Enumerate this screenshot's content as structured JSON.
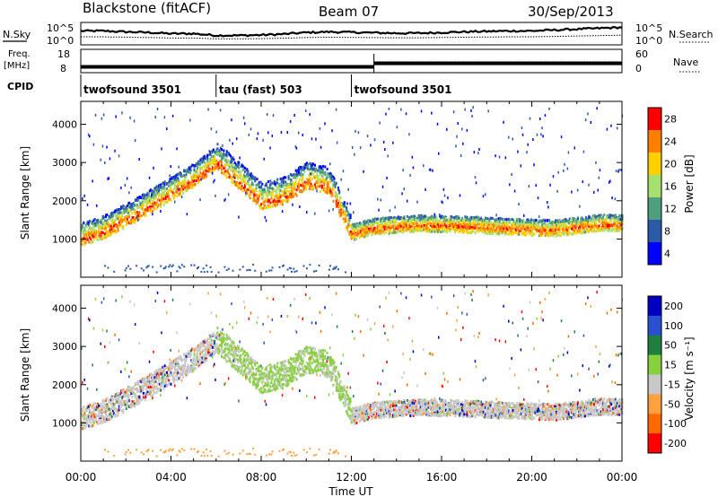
{
  "header": {
    "radar": "Blackstone (fitACF)",
    "beam": "Beam 07",
    "date": "30/Sep/2013"
  },
  "labels": {
    "nsky": "N.Sky",
    "nsearch": "N.Search",
    "freq_l1": "Freq.",
    "freq_l2": "[MHz]",
    "nave": "Nave",
    "cpid": "CPID",
    "ylabel": "Slant Range [km]",
    "xlabel": "Time UT"
  },
  "cpid_segments": [
    {
      "label": "twofsound 3501",
      "start_h": 0,
      "end_h": 6
    },
    {
      "label": "tau (fast) 503",
      "start_h": 6,
      "end_h": 12
    },
    {
      "label": "twofsound 3501",
      "start_h": 12,
      "end_h": 24
    }
  ],
  "noise_panel": {
    "left_ticks": [
      "10^5",
      "10^0"
    ],
    "right_ticks": [
      "10^5",
      "10^0"
    ],
    "nsky_level": [
      0.62,
      0.62,
      0.58,
      0.55,
      0.5,
      0.5,
      0.42,
      0.42,
      0.44,
      0.48,
      0.55,
      0.58,
      0.56,
      0.54,
      0.52,
      0.52,
      0.55,
      0.58,
      0.6,
      0.62,
      0.62,
      0.66,
      0.7,
      0.74,
      0.78
    ]
  },
  "freq_panel": {
    "left_ticks": [
      "18",
      "8"
    ],
    "right_ticks": [
      "60",
      "0"
    ],
    "freq_mhz": [
      {
        "start_h": 0,
        "end_h": 13,
        "value": 10.5
      },
      {
        "start_h": 13,
        "end_h": 24,
        "value": 12.0
      }
    ],
    "nave": [
      {
        "start_h": 0,
        "end_h": 13,
        "value": 14
      },
      {
        "start_h": 13,
        "end_h": 24,
        "value": 28
      }
    ]
  },
  "chart_data": [
    {
      "type": "heatmap",
      "name": "Power",
      "x_range_h": [
        0,
        24
      ],
      "ylim": [
        0,
        4600
      ],
      "yticks": [
        1000,
        2000,
        3000,
        4000
      ],
      "xticks": [
        "00:00",
        "04:00",
        "08:00",
        "12:00",
        "16:00",
        "20:00",
        "00:00"
      ],
      "colorbar": {
        "label": "Power [dB]",
        "ticks": [
          "28",
          "24",
          "20",
          "16",
          "12",
          "8",
          "4"
        ],
        "colors": [
          "#ff0000",
          "#ff7f00",
          "#ffd000",
          "#a6e06f",
          "#4f9f7f",
          "#2a5aa8",
          "#0000ff"
        ]
      },
      "echo_band_km": [
        {
          "t": 0.0,
          "r": 1000
        },
        {
          "t": 1.0,
          "r": 1200
        },
        {
          "t": 2.0,
          "r": 1500
        },
        {
          "t": 3.0,
          "r": 1850
        },
        {
          "t": 4.0,
          "r": 2200
        },
        {
          "t": 5.0,
          "r": 2550
        },
        {
          "t": 6.0,
          "r": 3000
        },
        {
          "t": 7.0,
          "r": 2500
        },
        {
          "t": 8.0,
          "r": 1950
        },
        {
          "t": 9.0,
          "r": 2100
        },
        {
          "t": 10.0,
          "r": 2500
        },
        {
          "t": 11.0,
          "r": 2350
        },
        {
          "t": 12.0,
          "r": 1150
        },
        {
          "t": 13.0,
          "r": 1300
        },
        {
          "t": 15.0,
          "r": 1380
        },
        {
          "t": 17.0,
          "r": 1350
        },
        {
          "t": 19.0,
          "r": 1300
        },
        {
          "t": 21.0,
          "r": 1250
        },
        {
          "t": 23.0,
          "r": 1400
        },
        {
          "t": 24.0,
          "r": 1380
        }
      ]
    },
    {
      "type": "heatmap",
      "name": "Velocity",
      "x_range_h": [
        0,
        24
      ],
      "ylim": [
        0,
        4600
      ],
      "yticks": [
        1000,
        2000,
        3000,
        4000
      ],
      "xticks": [
        "00:00",
        "04:00",
        "08:00",
        "12:00",
        "16:00",
        "20:00",
        "00:00"
      ],
      "colorbar": {
        "label": "Velocity [m s⁻¹]",
        "ticks": [
          "200",
          "100",
          "50",
          "15",
          "-15",
          "-50",
          "-100",
          "-200"
        ],
        "colors": [
          "#0000c0",
          "#2a4fd0",
          "#1f7f3f",
          "#88d040",
          "#c8c8c8",
          "#ffa040",
          "#ff6a00",
          "#ff0000"
        ]
      }
    }
  ]
}
